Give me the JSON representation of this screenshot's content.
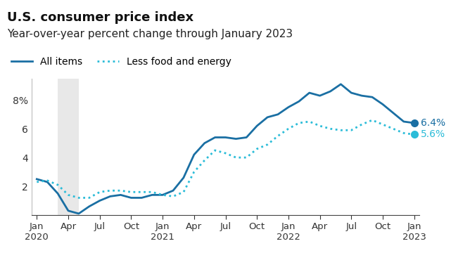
{
  "chart_data": {
    "type": "line",
    "title": "U.S. consumer price index",
    "subtitle": "Year-over-year percent change through January 2023",
    "categories": [
      "Jan\n2020",
      null,
      null,
      "Apr",
      null,
      null,
      "Jul",
      null,
      null,
      "Oct",
      null,
      null,
      "Jan\n2021",
      null,
      null,
      "Apr",
      null,
      null,
      "Jul",
      null,
      null,
      "Oct",
      null,
      null,
      "Jan\n2022",
      null,
      null,
      "Apr",
      null,
      null,
      "Jul",
      null,
      null,
      "Oct",
      null,
      null,
      "Jan\n2023"
    ],
    "series": [
      {
        "name": "All items",
        "color": "#1a6fa3",
        "line_style": "solid",
        "values": [
          2.5,
          2.3,
          1.5,
          0.3,
          0.1,
          0.6,
          1.0,
          1.3,
          1.4,
          1.2,
          1.2,
          1.4,
          1.4,
          1.7,
          2.6,
          4.2,
          5.0,
          5.4,
          5.4,
          5.3,
          5.4,
          6.2,
          6.8,
          7.0,
          7.5,
          7.9,
          8.5,
          8.3,
          8.6,
          9.1,
          8.5,
          8.3,
          8.2,
          7.7,
          7.1,
          6.5,
          6.4
        ],
        "value_labels": [
          null,
          null,
          null,
          null,
          null,
          null,
          null,
          null,
          null,
          null,
          null,
          null,
          null,
          null,
          null,
          null,
          null,
          null,
          null,
          null,
          null,
          null,
          null,
          null,
          null,
          null,
          null,
          null,
          null,
          null,
          null,
          null,
          null,
          null,
          null,
          null,
          "6.4%"
        ]
      },
      {
        "name": "Less food and energy",
        "color": "#2bbcd8",
        "line_style": "dotted",
        "values": [
          2.3,
          2.4,
          2.1,
          1.4,
          1.2,
          1.2,
          1.6,
          1.7,
          1.7,
          1.6,
          1.6,
          1.6,
          1.4,
          1.3,
          1.6,
          3.0,
          3.8,
          4.5,
          4.3,
          4.0,
          4.0,
          4.6,
          4.9,
          5.5,
          6.0,
          6.4,
          6.5,
          6.2,
          6.0,
          5.9,
          5.9,
          6.3,
          6.6,
          6.3,
          6.0,
          5.7,
          5.6
        ],
        "value_labels": [
          null,
          null,
          null,
          null,
          null,
          null,
          null,
          null,
          null,
          null,
          null,
          null,
          null,
          null,
          null,
          null,
          null,
          null,
          null,
          null,
          null,
          null,
          null,
          null,
          null,
          null,
          null,
          null,
          null,
          null,
          null,
          null,
          null,
          null,
          null,
          null,
          "5.6%"
        ]
      }
    ],
    "shaded_x": [
      2,
      4
    ],
    "ylim": [
      0,
      9.5
    ],
    "yticks": [
      2,
      4,
      6,
      {
        "value": 8,
        "label": "8%"
      }
    ],
    "grid": false,
    "legend": "upper left",
    "data_labels": true
  }
}
